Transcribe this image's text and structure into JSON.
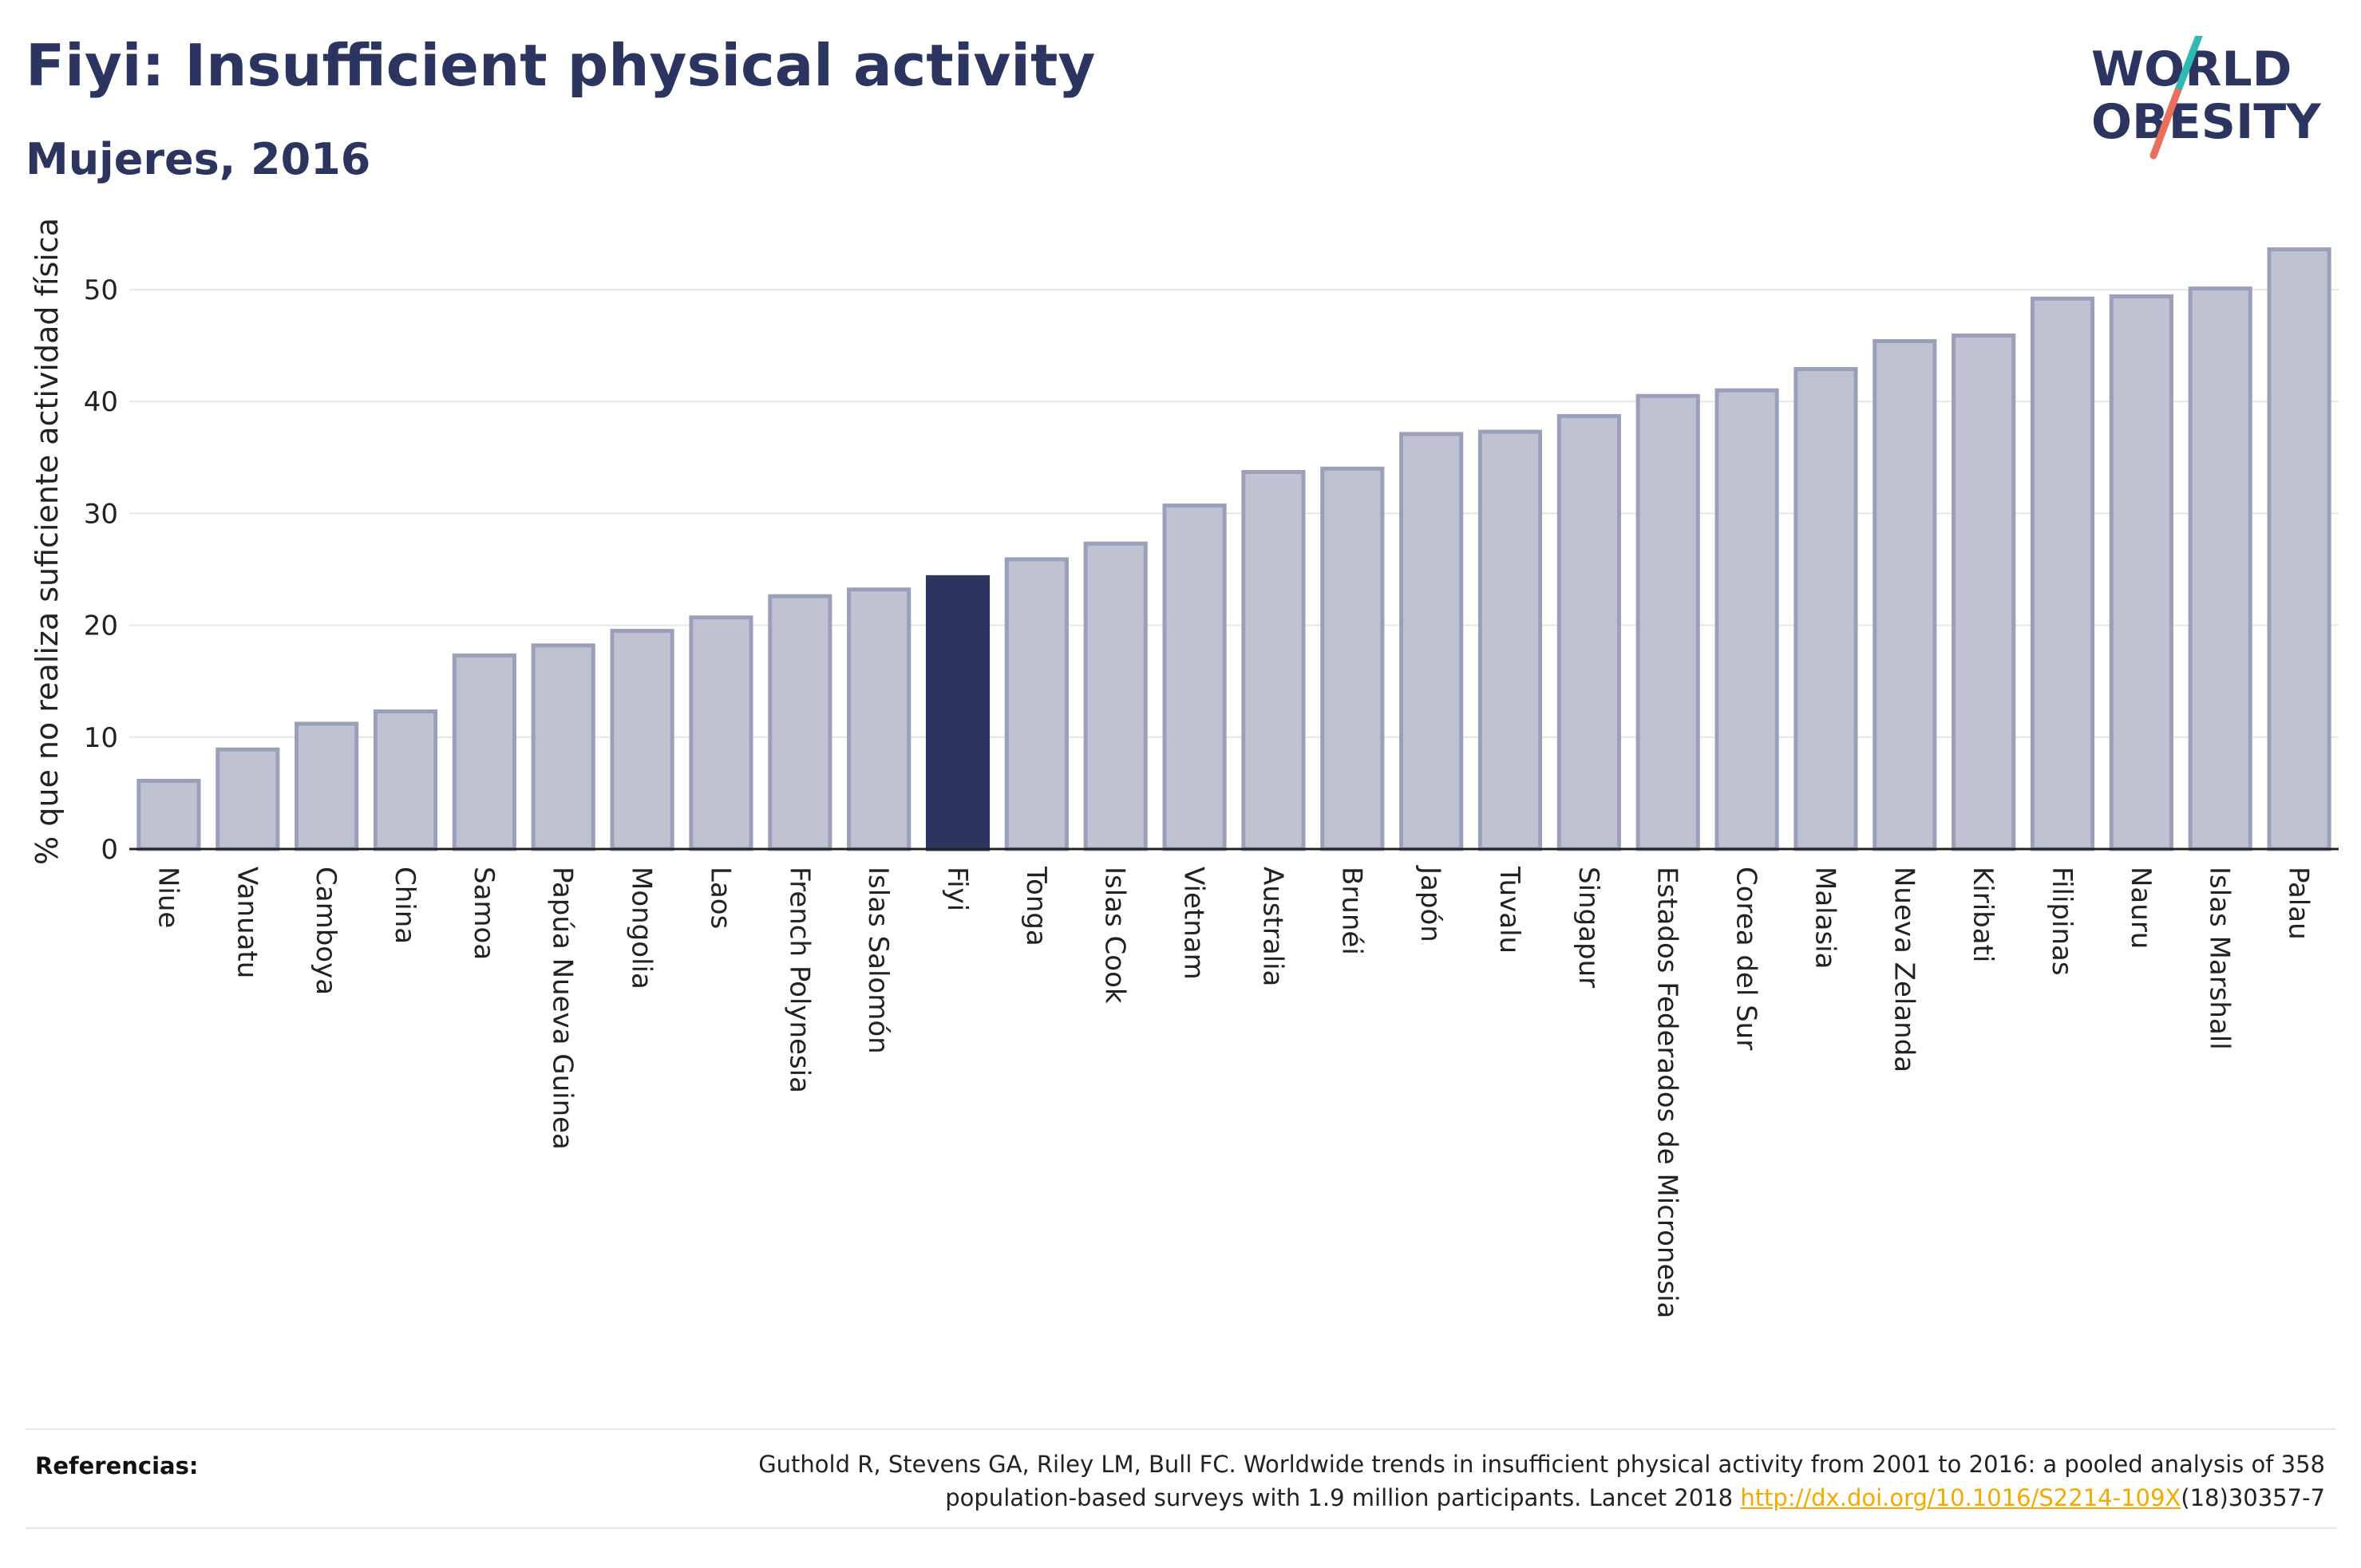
{
  "header": {
    "title": "Fiyi: Insufficient physical activity",
    "subtitle": "Mujeres, 2016"
  },
  "logo": {
    "line1": "WORLD",
    "line2": "OBESITY"
  },
  "chart_data": {
    "type": "bar",
    "ylabel": "% que no realiza suficiente actividad física",
    "ylim": [
      0,
      55
    ],
    "yticks": [
      0,
      10,
      20,
      30,
      40,
      50
    ],
    "grid": true,
    "highlight": "Fiyi",
    "categories": [
      "Niue",
      "Vanuatu",
      "Camboya",
      "China",
      "Samoa",
      "Papúa Nueva Guinea",
      "Mongolia",
      "Laos",
      "French Polynesia",
      "Islas Salomón",
      "Fiyi",
      "Tonga",
      "Islas Cook",
      "Vietnam",
      "Australia",
      "Brunéi",
      "Japón",
      "Tuvalu",
      "Singapur",
      "Estados Federados de Micronesia",
      "Corea del Sur",
      "Malasia",
      "Nueva Zelanda",
      "Kiribati",
      "Filipinas",
      "Nauru",
      "Islas Marshall",
      "Palau"
    ],
    "values": [
      6.1,
      8.9,
      11.2,
      12.3,
      17.3,
      18.2,
      19.5,
      20.7,
      22.6,
      23.2,
      24.3,
      25.9,
      27.3,
      30.7,
      33.7,
      34.0,
      37.1,
      37.3,
      38.7,
      40.5,
      41.0,
      42.9,
      45.4,
      45.9,
      49.2,
      49.4,
      50.1,
      53.6
    ],
    "colors": {
      "bar": "#bfc3d1",
      "bar_stroke": "#9aa0ba",
      "highlight": "#2b3560"
    }
  },
  "references": {
    "label": "Referencias:",
    "line1": "Guthold R, Stevens GA, Riley LM, Bull FC. Worldwide trends in insufficient physical activity from 2001 to 2016: a pooled analysis of 358",
    "line2_pre": "population-based surveys with 1.9 million participants. Lancet 2018 ",
    "link": "http://dx.doi.org/10.1016/S2214-109X",
    "line2_post": "(18)30357-7"
  }
}
